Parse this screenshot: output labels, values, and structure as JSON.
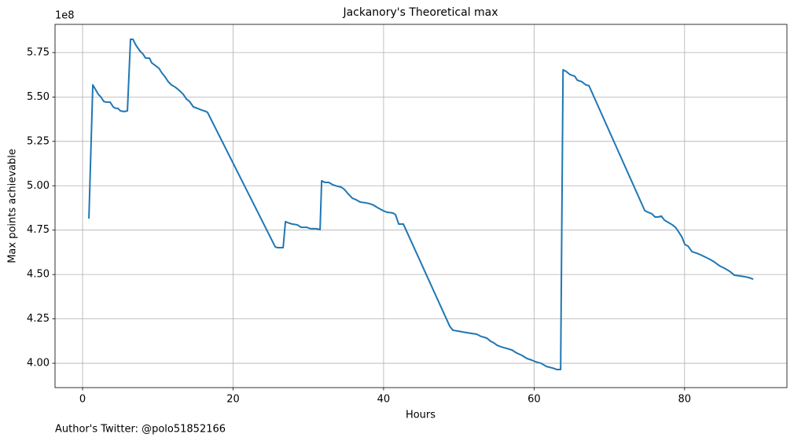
{
  "chart_data": {
    "type": "line",
    "title": "Jackanory's Theoretical max",
    "x_label": "Hours",
    "y_label": "Max points achievable",
    "y_offset_label": "1e8",
    "footnote": "Author's Twitter: @polo51852166",
    "color": "#1f77b4",
    "grid": true,
    "x": [
      0.84,
      1.36,
      1.67,
      2.09,
      2.4,
      2.82,
      3.13,
      3.66,
      4.08,
      4.39,
      4.7,
      5.02,
      5.54,
      5.96,
      6.37,
      6.69,
      7.11,
      7.63,
      8.05,
      8.36,
      8.88,
      9.2,
      9.61,
      10.14,
      10.55,
      10.97,
      11.39,
      11.81,
      12.33,
      12.85,
      13.38,
      13.79,
      14.21,
      14.73,
      15.26,
      15.78,
      16.41,
      16.61,
      25.6,
      25.91,
      26.65,
      26.96,
      27.48,
      27.9,
      28.53,
      29.05,
      29.78,
      30.3,
      31.03,
      31.56,
      31.77,
      32.18,
      32.71,
      33.23,
      33.86,
      34.38,
      34.8,
      35.32,
      35.84,
      36.36,
      36.89,
      37.62,
      38.14,
      38.66,
      39.18,
      39.92,
      40.44,
      41.27,
      41.59,
      42.01,
      42.63,
      48.8,
      49.22,
      49.84,
      50.47,
      50.99,
      51.72,
      52.35,
      52.98,
      53.71,
      54.23,
      54.65,
      55.07,
      55.59,
      56.32,
      57.05,
      57.68,
      58.41,
      59.04,
      59.67,
      60.19,
      60.92,
      61.65,
      62.49,
      63.01,
      63.53,
      63.85,
      64.26,
      64.78,
      65.41,
      65.73,
      66.35,
      66.88,
      67.29,
      74.71,
      75.13,
      75.65,
      76.07,
      76.49,
      76.91,
      77.33,
      77.85,
      78.37,
      78.79,
      79.21,
      79.62,
      80.04,
      80.46,
      80.98,
      81.61,
      82.13,
      82.76,
      83.39,
      83.91,
      84.64,
      85.27,
      86.0,
      86.62,
      87.36,
      88.09,
      88.51,
      89.13
    ],
    "values": [
      4.815,
      5.568,
      5.546,
      5.515,
      5.502,
      5.475,
      5.471,
      5.471,
      5.444,
      5.436,
      5.436,
      5.422,
      5.418,
      5.422,
      5.825,
      5.825,
      5.79,
      5.759,
      5.741,
      5.719,
      5.719,
      5.692,
      5.679,
      5.662,
      5.635,
      5.613,
      5.586,
      5.568,
      5.555,
      5.537,
      5.515,
      5.489,
      5.475,
      5.444,
      5.436,
      5.427,
      5.418,
      5.413,
      4.656,
      4.651,
      4.651,
      4.798,
      4.789,
      4.784,
      4.78,
      4.766,
      4.766,
      4.758,
      4.758,
      4.753,
      5.028,
      5.019,
      5.019,
      5.006,
      4.997,
      4.992,
      4.979,
      4.953,
      4.93,
      4.921,
      4.908,
      4.904,
      4.899,
      4.891,
      4.877,
      4.86,
      4.851,
      4.846,
      4.837,
      4.784,
      4.784,
      4.208,
      4.186,
      4.182,
      4.177,
      4.173,
      4.168,
      4.164,
      4.151,
      4.142,
      4.124,
      4.115,
      4.102,
      4.093,
      4.084,
      4.075,
      4.058,
      4.044,
      4.027,
      4.018,
      4.009,
      4.0,
      3.982,
      3.973,
      3.965,
      3.965,
      5.653,
      5.644,
      5.626,
      5.617,
      5.595,
      5.586,
      5.568,
      5.564,
      4.86,
      4.851,
      4.842,
      4.824,
      4.824,
      4.829,
      4.806,
      4.793,
      4.78,
      4.766,
      4.74,
      4.713,
      4.669,
      4.66,
      4.629,
      4.62,
      4.611,
      4.598,
      4.585,
      4.572,
      4.549,
      4.536,
      4.518,
      4.496,
      4.492,
      4.487,
      4.483,
      4.474
    ],
    "xlim": [
      -3.66,
      93.6
    ],
    "ylim": [
      3.863,
      5.909
    ],
    "xticks": [
      0,
      20,
      40,
      60,
      80
    ],
    "yticks": [
      {
        "value": 4,
        "label": "4.00"
      },
      4.25,
      {
        "value": 4.5,
        "label": "4.50"
      },
      4.75,
      {
        "value": 5,
        "label": "5.00"
      },
      5.25,
      {
        "value": 5.5,
        "label": "5.50"
      },
      5.75
    ]
  }
}
